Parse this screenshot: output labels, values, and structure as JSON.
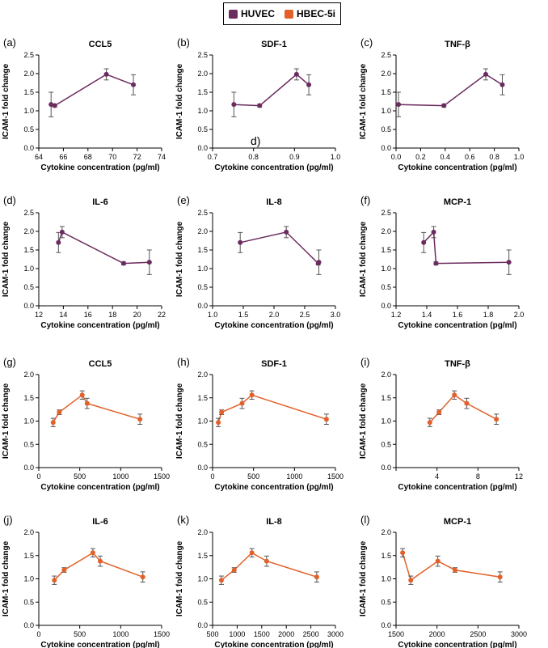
{
  "legend": [
    {
      "label": "HUVEC",
      "color": "#6b2b5e"
    },
    {
      "label": "HBEC-5i",
      "color": "#e2612a"
    }
  ],
  "stray_text": "d)",
  "chart_data": [
    {
      "type": "line",
      "panel": "(a)",
      "title": "CCL5",
      "xlabel": "Cytokine concentration (pg/ml)",
      "ylabel": "ICAM-1 fold change",
      "series_color": "#6b2b5e",
      "xlim": [
        64,
        74
      ],
      "xticks": [
        64,
        66,
        68,
        70,
        72,
        74
      ],
      "xtick_labels": [
        "64",
        "66",
        "68",
        "70",
        "72",
        "74"
      ],
      "ylim": [
        0,
        2.5
      ],
      "yticks": [
        0,
        0.5,
        1,
        1.5,
        2,
        2.5
      ],
      "ytick_labels": [
        "0.0",
        "0.5",
        "1.0",
        "1.5",
        "2.0",
        "2.5"
      ],
      "points": [
        {
          "x": 65.0,
          "y": 1.17,
          "err": 0.33
        },
        {
          "x": 65.3,
          "y": 1.14,
          "err": 0.04
        },
        {
          "x": 69.5,
          "y": 1.98,
          "err": 0.15
        },
        {
          "x": 71.7,
          "y": 1.7,
          "err": 0.27
        }
      ]
    },
    {
      "type": "line",
      "panel": "(b)",
      "title": "SDF-1",
      "xlabel": "Cytokine concentration (pg/ml)",
      "ylabel": "ICAM-1 fold change",
      "series_color": "#6b2b5e",
      "xlim": [
        0.7,
        1.0
      ],
      "xticks": [
        0.7,
        0.8,
        0.9,
        1.0
      ],
      "xtick_labels": [
        "0.7",
        "0.8",
        "0.9",
        "1.0"
      ],
      "ylim": [
        0,
        2.5
      ],
      "yticks": [
        0,
        0.5,
        1,
        1.5,
        2,
        2.5
      ],
      "ytick_labels": [
        "0.0",
        "0.5",
        "1.0",
        "1.5",
        "2.0",
        "2.5"
      ],
      "points": [
        {
          "x": 0.752,
          "y": 1.17,
          "err": 0.33
        },
        {
          "x": 0.815,
          "y": 1.14,
          "err": 0.04
        },
        {
          "x": 0.905,
          "y": 1.98,
          "err": 0.15
        },
        {
          "x": 0.935,
          "y": 1.7,
          "err": 0.27
        }
      ]
    },
    {
      "type": "line",
      "panel": "(c)",
      "title": "TNF-β",
      "xlabel": "Cytokine concentration (pg/ml)",
      "ylabel": "ICAM-1 fold change",
      "series_color": "#6b2b5e",
      "xlim": [
        0,
        1.0
      ],
      "xticks": [
        0,
        0.2,
        0.4,
        0.6,
        0.8,
        1.0
      ],
      "xtick_labels": [
        "0.0",
        "0.2",
        "0.4",
        "0.6",
        "0.8",
        "1.0"
      ],
      "ylim": [
        0,
        2.5
      ],
      "yticks": [
        0,
        0.5,
        1,
        1.5,
        2,
        2.5
      ],
      "ytick_labels": [
        "0.0",
        "0.5",
        "1.0",
        "1.5",
        "2.0",
        "2.5"
      ],
      "points": [
        {
          "x": 0.02,
          "y": 1.17,
          "err": 0.33
        },
        {
          "x": 0.39,
          "y": 1.14,
          "err": 0.04
        },
        {
          "x": 0.73,
          "y": 1.98,
          "err": 0.15
        },
        {
          "x": 0.865,
          "y": 1.7,
          "err": 0.27
        }
      ]
    },
    {
      "type": "line",
      "panel": "(d)",
      "title": "IL-6",
      "xlabel": "Cytokine concentration (pg/ml)",
      "ylabel": "ICAM-1 fold change",
      "series_color": "#6b2b5e",
      "xlim": [
        12,
        22
      ],
      "xticks": [
        12,
        14,
        16,
        18,
        20,
        22
      ],
      "xtick_labels": [
        "12",
        "14",
        "16",
        "18",
        "20",
        "22"
      ],
      "ylim": [
        0,
        2.5
      ],
      "yticks": [
        0,
        0.5,
        1,
        1.5,
        2,
        2.5
      ],
      "ytick_labels": [
        "0.0",
        "0.5",
        "1.0",
        "1.5",
        "2.0",
        "2.5"
      ],
      "points": [
        {
          "x": 13.6,
          "y": 1.7,
          "err": 0.27
        },
        {
          "x": 13.9,
          "y": 1.98,
          "err": 0.15
        },
        {
          "x": 18.9,
          "y": 1.14,
          "err": 0.04
        },
        {
          "x": 21.0,
          "y": 1.17,
          "err": 0.33
        }
      ]
    },
    {
      "type": "line",
      "panel": "(e)",
      "title": "IL-8",
      "xlabel": "Cytokine concentration (pg/ml)",
      "ylabel": "ICAM-1 fold change",
      "series_color": "#6b2b5e",
      "xlim": [
        1.0,
        3.0
      ],
      "xticks": [
        1.0,
        1.5,
        2.0,
        2.5,
        3.0
      ],
      "xtick_labels": [
        "1.0",
        "1.5",
        "2.0",
        "2.5",
        "3.0"
      ],
      "ylim": [
        0,
        2.5
      ],
      "yticks": [
        0,
        0.5,
        1,
        1.5,
        2,
        2.5
      ],
      "ytick_labels": [
        "0.0",
        "0.5",
        "1.0",
        "1.5",
        "2.0",
        "2.5"
      ],
      "points": [
        {
          "x": 1.45,
          "y": 1.7,
          "err": 0.27
        },
        {
          "x": 2.2,
          "y": 1.98,
          "err": 0.15
        },
        {
          "x": 2.72,
          "y": 1.14,
          "err": 0.04
        },
        {
          "x": 2.73,
          "y": 1.17,
          "err": 0.33
        }
      ]
    },
    {
      "type": "line",
      "panel": "(f)",
      "title": "MCP-1",
      "xlabel": "Cytokine concentration (pg/ml)",
      "ylabel": "ICAM-1 fold change",
      "series_color": "#6b2b5e",
      "xlim": [
        1.2,
        2.0
      ],
      "xticks": [
        1.2,
        1.4,
        1.6,
        1.8,
        2.0
      ],
      "xtick_labels": [
        "1.2",
        "1.4",
        "1.6",
        "1.8",
        "2.0"
      ],
      "ylim": [
        0,
        2.5
      ],
      "yticks": [
        0,
        0.5,
        1,
        1.5,
        2,
        2.5
      ],
      "ytick_labels": [
        "0.0",
        "0.5",
        "1.0",
        "1.5",
        "2.0",
        "2.5"
      ],
      "points": [
        {
          "x": 1.38,
          "y": 1.7,
          "err": 0.27
        },
        {
          "x": 1.445,
          "y": 1.98,
          "err": 0.15
        },
        {
          "x": 1.46,
          "y": 1.14,
          "err": 0.04
        },
        {
          "x": 1.935,
          "y": 1.17,
          "err": 0.33
        }
      ]
    },
    {
      "type": "line",
      "panel": "(g)",
      "title": "CCL5",
      "xlabel": "Cytokine concentration (pg/ml)",
      "ylabel": "ICAM-1 fold change",
      "series_color": "#e2612a",
      "xlim": [
        0,
        1500
      ],
      "xticks": [
        0,
        500,
        1000,
        1500
      ],
      "xtick_labels": [
        "0",
        "500",
        "1000",
        "1500"
      ],
      "ylim": [
        0,
        2.0
      ],
      "yticks": [
        0,
        0.5,
        1,
        1.5,
        2
      ],
      "ytick_labels": [
        "0.0",
        "0.5",
        "1.0",
        "1.5",
        "2.0"
      ],
      "points": [
        {
          "x": 175,
          "y": 0.97,
          "err": 0.09
        },
        {
          "x": 250,
          "y": 1.19,
          "err": 0.05
        },
        {
          "x": 530,
          "y": 1.56,
          "err": 0.09
        },
        {
          "x": 590,
          "y": 1.38,
          "err": 0.11
        },
        {
          "x": 1235,
          "y": 1.04,
          "err": 0.11
        }
      ]
    },
    {
      "type": "line",
      "panel": "(h)",
      "title": "SDF-1",
      "xlabel": "Cytokine concentration (pg/ml)",
      "ylabel": "ICAM-1 fold change",
      "series_color": "#e2612a",
      "xlim": [
        0,
        1500
      ],
      "xticks": [
        0,
        500,
        1000,
        1500
      ],
      "xtick_labels": [
        "0",
        "500",
        "1000",
        "1500"
      ],
      "ylim": [
        0,
        2.0
      ],
      "yticks": [
        0,
        0.5,
        1,
        1.5,
        2
      ],
      "ytick_labels": [
        "0.0",
        "0.5",
        "1.0",
        "1.5",
        "2.0"
      ],
      "points": [
        {
          "x": 70,
          "y": 0.97,
          "err": 0.09
        },
        {
          "x": 110,
          "y": 1.19,
          "err": 0.05
        },
        {
          "x": 360,
          "y": 1.38,
          "err": 0.11
        },
        {
          "x": 480,
          "y": 1.56,
          "err": 0.09
        },
        {
          "x": 1390,
          "y": 1.04,
          "err": 0.11
        }
      ]
    },
    {
      "type": "line",
      "panel": "(i)",
      "title": "TNF-β",
      "xlabel": "Cytokine concentration (pg/ml)",
      "ylabel": "ICAM-1 fold change",
      "series_color": "#e2612a",
      "xlim": [
        0,
        12
      ],
      "xticks": [
        0,
        4,
        8,
        12
      ],
      "xtick_labels": [
        "",
        "4",
        "8",
        "12"
      ],
      "ylim": [
        0,
        2.0
      ],
      "yticks": [
        0,
        0.5,
        1,
        1.5,
        2
      ],
      "ytick_labels": [
        "0.0",
        "0.5",
        "1.0",
        "1.5",
        "2.0"
      ],
      "points": [
        {
          "x": 3.3,
          "y": 0.97,
          "err": 0.09
        },
        {
          "x": 4.2,
          "y": 1.19,
          "err": 0.05
        },
        {
          "x": 5.7,
          "y": 1.56,
          "err": 0.09
        },
        {
          "x": 6.9,
          "y": 1.38,
          "err": 0.11
        },
        {
          "x": 9.8,
          "y": 1.04,
          "err": 0.11
        }
      ]
    },
    {
      "type": "line",
      "panel": "(j)",
      "title": "IL-6",
      "xlabel": "Cytokine concentration (pg/ml)",
      "ylabel": "ICAM-1 fold change",
      "series_color": "#e2612a",
      "xlim": [
        0,
        1500
      ],
      "xticks": [
        0,
        500,
        1000,
        1500
      ],
      "xtick_labels": [
        "0",
        "500",
        "1000",
        "1500"
      ],
      "ylim": [
        0,
        2.0
      ],
      "yticks": [
        0,
        0.5,
        1,
        1.5,
        2
      ],
      "ytick_labels": [
        "0.0",
        "0.5",
        "1.0",
        "1.5",
        "2.0"
      ],
      "points": [
        {
          "x": 190,
          "y": 0.97,
          "err": 0.09
        },
        {
          "x": 310,
          "y": 1.19,
          "err": 0.05
        },
        {
          "x": 660,
          "y": 1.56,
          "err": 0.09
        },
        {
          "x": 750,
          "y": 1.38,
          "err": 0.11
        },
        {
          "x": 1270,
          "y": 1.04,
          "err": 0.11
        }
      ]
    },
    {
      "type": "line",
      "panel": "(k)",
      "title": "IL-8",
      "xlabel": "Cytokine concentration (pg/ml)",
      "ylabel": "ICAM-1 fold change",
      "series_color": "#e2612a",
      "xlim": [
        500,
        3000
      ],
      "xticks": [
        500,
        1000,
        1500,
        2000,
        2500,
        3000
      ],
      "xtick_labels": [
        "500",
        "1000",
        "1500",
        "2000",
        "2500",
        "3000"
      ],
      "ylim": [
        0,
        2.0
      ],
      "yticks": [
        0,
        0.5,
        1,
        1.5,
        2
      ],
      "ytick_labels": [
        "0.0",
        "0.5",
        "1.0",
        "1.5",
        "2.0"
      ],
      "points": [
        {
          "x": 680,
          "y": 0.97,
          "err": 0.09
        },
        {
          "x": 940,
          "y": 1.19,
          "err": 0.05
        },
        {
          "x": 1300,
          "y": 1.56,
          "err": 0.09
        },
        {
          "x": 1600,
          "y": 1.38,
          "err": 0.11
        },
        {
          "x": 2620,
          "y": 1.04,
          "err": 0.11
        }
      ]
    },
    {
      "type": "line",
      "panel": "(l)",
      "title": "MCP-1",
      "xlabel": "Cytokine concentration (pg/ml)",
      "ylabel": "ICAM-1 fold change",
      "series_color": "#e2612a",
      "xlim": [
        1500,
        3000
      ],
      "xticks": [
        1500,
        2000,
        2500,
        3000
      ],
      "xtick_labels": [
        "1500",
        "2000",
        "2500",
        "3000"
      ],
      "ylim": [
        0,
        2.0
      ],
      "yticks": [
        0,
        0.5,
        1,
        1.5,
        2
      ],
      "ytick_labels": [
        "0.0",
        "0.5",
        "1.0",
        "1.5",
        "2.0"
      ],
      "points": [
        {
          "x": 1580,
          "y": 1.56,
          "err": 0.09
        },
        {
          "x": 1680,
          "y": 0.97,
          "err": 0.09
        },
        {
          "x": 2010,
          "y": 1.38,
          "err": 0.11
        },
        {
          "x": 2220,
          "y": 1.19,
          "err": 0.05
        },
        {
          "x": 2770,
          "y": 1.04,
          "err": 0.11
        }
      ]
    }
  ]
}
